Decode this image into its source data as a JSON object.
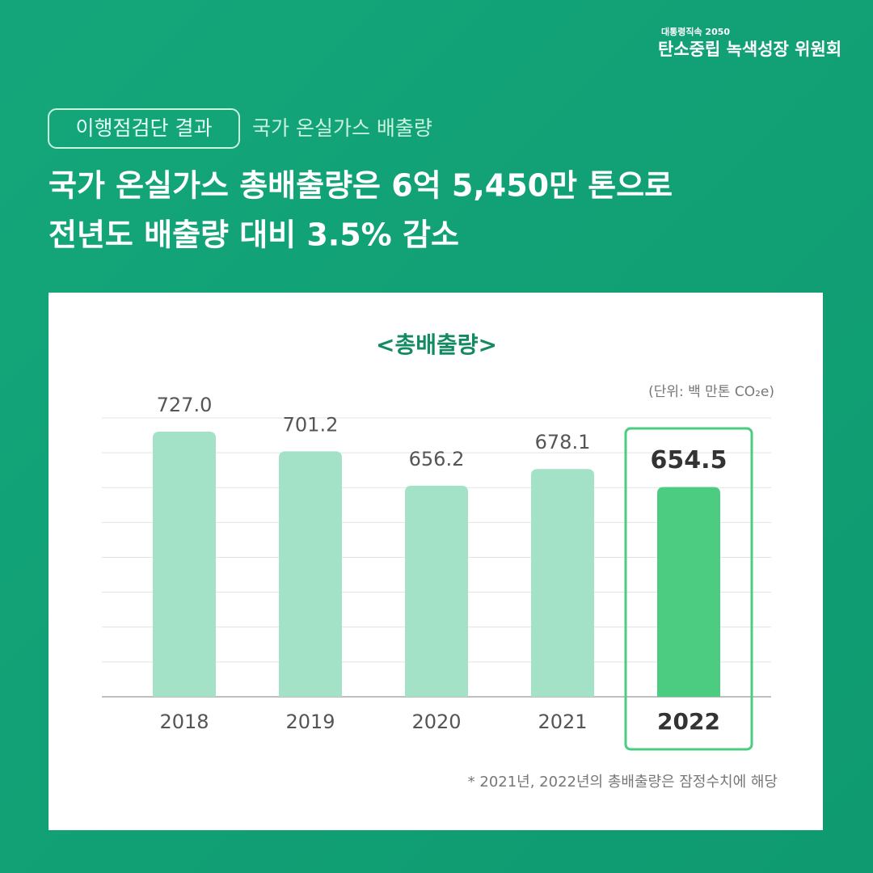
{
  "header": {
    "logo_small": "대통령직속 2050",
    "logo_main": "탄소중립 녹색성장 위원회",
    "tag": "이행점검단 결과",
    "subtitle": "국가 온실가스 배출량",
    "headline": [
      "국가 온실가스 총배출량은 6억 5,450만 톤으로",
      "전년도 배출량 대비 3.5% 감소"
    ]
  },
  "chart_data": {
    "type": "bar",
    "title": "<총배출량>",
    "unit": "(단위: 백 만톤 CO₂e)",
    "categories": [
      "2018",
      "2019",
      "2020",
      "2021",
      "2022"
    ],
    "values": [
      727.0,
      701.2,
      656.2,
      678.1,
      654.5
    ],
    "value_labels": [
      "727.0",
      "701.2",
      "656.2",
      "678.1",
      "654.5"
    ],
    "color": "#a3e2c6",
    "highlight": "2022",
    "highlight_color": "#4ccc80",
    "ylim": [
      380,
      745
    ],
    "grid": true,
    "note": "* 2021년, 2022년의 총배출량은 잠정수치에 해당"
  }
}
